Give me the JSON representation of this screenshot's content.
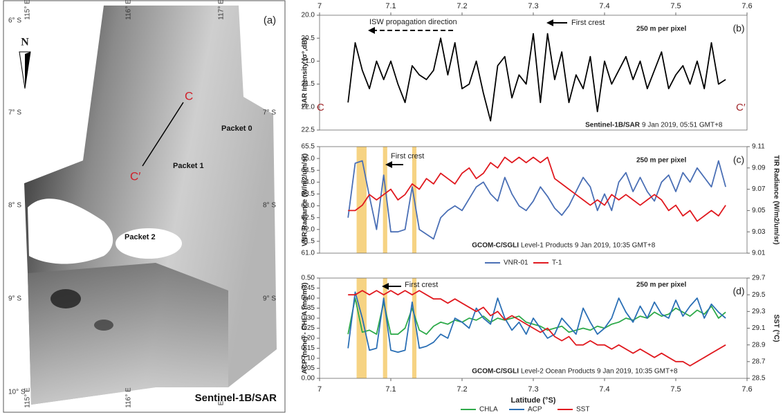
{
  "map": {
    "panel_label": "(a)",
    "north": "N",
    "lat_left": [
      "6° S",
      "7° S",
      "8° S",
      "9° S",
      "10° S"
    ],
    "lat_right": [
      "7° S",
      "8° S",
      "9° S"
    ],
    "lon_top": [
      "115° E",
      "116° E",
      "117° E"
    ],
    "lon_bottom": [
      "115° E",
      "116° E",
      "E"
    ],
    "points": [
      "C",
      "C′"
    ],
    "packets": [
      "Packet 0",
      "Packet 1",
      "Packet 2"
    ],
    "caption": "Sentinel-1B/SAR"
  },
  "chart_data": [
    {
      "type": "line",
      "panel_label": "(b)",
      "y_label": "SAR Intensity (σ°,dB)",
      "x_axis": "top",
      "x": [
        7.04,
        7.05,
        7.06,
        7.07,
        7.08,
        7.09,
        7.1,
        7.11,
        7.12,
        7.13,
        7.14,
        7.15,
        7.16,
        7.17,
        7.18,
        7.19,
        7.2,
        7.21,
        7.22,
        7.23,
        7.24,
        7.25,
        7.26,
        7.27,
        7.28,
        7.29,
        7.3,
        7.31,
        7.32,
        7.33,
        7.34,
        7.35,
        7.36,
        7.37,
        7.38,
        7.39,
        7.4,
        7.41,
        7.42,
        7.43,
        7.44,
        7.45,
        7.46,
        7.47,
        7.48,
        7.49,
        7.5,
        7.51,
        7.52,
        7.53,
        7.54,
        7.55,
        7.56,
        7.57
      ],
      "xlim": [
        7,
        7.6
      ],
      "xticks": [
        7,
        7.1,
        7.2,
        7.3,
        7.4,
        7.5,
        7.6
      ],
      "ylim": [
        22.5,
        20.0
      ],
      "yticks": [
        {
          "value": 20,
          "label": "20.0"
        },
        20.5,
        {
          "value": 21,
          "label": "21.0"
        },
        21.5,
        {
          "value": 22,
          "label": "22.0"
        },
        22.5
      ],
      "series": [
        {
          "color": "#000000",
          "values": [
            21.9,
            20.6,
            21.2,
            21.6,
            21.0,
            21.4,
            21.0,
            21.5,
            21.9,
            21.1,
            21.3,
            21.4,
            21.2,
            20.5,
            21.3,
            20.6,
            21.6,
            21.5,
            21.0,
            21.7,
            22.3,
            21.1,
            20.9,
            21.8,
            21.3,
            21.5,
            20.4,
            21.9,
            20.4,
            21.4,
            20.8,
            21.9,
            21.3,
            21.6,
            20.9,
            22.1,
            21.0,
            21.5,
            21.2,
            20.9,
            21.4,
            21.0,
            21.6,
            21.2,
            20.8,
            21.6,
            21.3,
            21.1,
            21.5,
            21.0,
            21.6,
            20.6,
            21.5,
            21.4
          ]
        }
      ],
      "annotations": [
        "ISW propagation direction",
        "First crest",
        "250 m per pixel",
        "C",
        "C′",
        "Sentinel-1B/SAR",
        "9 Jan 2019, 05:51 GMT+8"
      ]
    },
    {
      "type": "line",
      "panel_label": "(c)",
      "y_label": "VNR Radiance (W/m2/um/sr)",
      "y2_label": "TIR Radiance (W/m2/um/sr)",
      "x_axis": "none",
      "x": [
        7.04,
        7.05,
        7.06,
        7.07,
        7.08,
        7.09,
        7.1,
        7.11,
        7.12,
        7.13,
        7.14,
        7.15,
        7.16,
        7.17,
        7.18,
        7.19,
        7.2,
        7.21,
        7.22,
        7.23,
        7.24,
        7.25,
        7.26,
        7.27,
        7.28,
        7.29,
        7.3,
        7.31,
        7.32,
        7.33,
        7.34,
        7.35,
        7.36,
        7.37,
        7.38,
        7.39,
        7.4,
        7.41,
        7.42,
        7.43,
        7.44,
        7.45,
        7.46,
        7.47,
        7.48,
        7.49,
        7.5,
        7.51,
        7.52,
        7.53,
        7.54,
        7.55,
        7.56,
        7.57
      ],
      "xlim": [
        7,
        7.6
      ],
      "ylim": [
        61,
        65.5
      ],
      "yticks": [
        {
          "value": 61,
          "label": "61.0"
        },
        61.5,
        {
          "value": 62,
          "label": "62.0"
        },
        62.5,
        {
          "value": 63,
          "label": "63.0"
        },
        63.5,
        {
          "value": 64,
          "label": "64.0"
        },
        64.5,
        {
          "value": 65,
          "label": "65.0"
        },
        65.5
      ],
      "y2lim": [
        9.01,
        9.11
      ],
      "y2ticks": [
        9.01,
        9.03,
        9.05,
        9.07,
        9.09,
        9.11
      ],
      "highlight_bands": [
        [
          7.052,
          7.066
        ],
        [
          7.089,
          7.095
        ],
        [
          7.13,
          7.136
        ]
      ],
      "series": [
        {
          "name": "VNR-01",
          "color": "#4a6fb5",
          "values": [
            62.5,
            64.8,
            64.9,
            63.4,
            62.0,
            64.3,
            61.9,
            61.9,
            62.0,
            63.8,
            62.0,
            61.8,
            61.6,
            62.5,
            62.8,
            63.0,
            62.8,
            63.3,
            63.8,
            64.0,
            63.5,
            63.2,
            64.2,
            63.5,
            63.0,
            62.8,
            63.2,
            63.8,
            63.4,
            62.9,
            62.6,
            63.0,
            63.6,
            64.2,
            63.8,
            62.8,
            63.5,
            62.8,
            64.0,
            64.4,
            63.6,
            64.2,
            63.6,
            63.2,
            64.0,
            64.3,
            63.6,
            64.4,
            64.0,
            64.6,
            64.2,
            63.8,
            64.9,
            63.8
          ]
        },
        {
          "name": "T-1",
          "color": "#e0191f",
          "axis": "y2",
          "values": [
            9.05,
            9.05,
            9.055,
            9.065,
            9.06,
            9.065,
            9.07,
            9.06,
            9.065,
            9.075,
            9.07,
            9.08,
            9.075,
            9.085,
            9.08,
            9.075,
            9.085,
            9.09,
            9.08,
            9.085,
            9.095,
            9.09,
            9.1,
            9.095,
            9.1,
            9.095,
            9.1,
            9.095,
            9.1,
            9.08,
            9.075,
            9.07,
            9.065,
            9.06,
            9.055,
            9.06,
            9.055,
            9.065,
            9.06,
            9.065,
            9.06,
            9.055,
            9.06,
            9.065,
            9.06,
            9.05,
            9.055,
            9.045,
            9.05,
            9.04,
            9.045,
            9.05,
            9.045,
            9.055
          ]
        }
      ],
      "annotations": [
        "First crest",
        "250 m per pixel",
        "GCOM-C/SGLI",
        "Level-1 Products 9 Jan 2019, 10:35 GMT+8"
      ]
    },
    {
      "type": "line",
      "panel_label": "(d)",
      "y_label": "ACP (none) - CHLA (mg/m3)",
      "y2_label": "SST (°C)",
      "x_label": "Latitude (°S)",
      "x_axis": "bottom",
      "x": [
        7.04,
        7.05,
        7.06,
        7.07,
        7.08,
        7.09,
        7.1,
        7.11,
        7.12,
        7.13,
        7.14,
        7.15,
        7.16,
        7.17,
        7.18,
        7.19,
        7.2,
        7.21,
        7.22,
        7.23,
        7.24,
        7.25,
        7.26,
        7.27,
        7.28,
        7.29,
        7.3,
        7.31,
        7.32,
        7.33,
        7.34,
        7.35,
        7.36,
        7.37,
        7.38,
        7.39,
        7.4,
        7.41,
        7.42,
        7.43,
        7.44,
        7.45,
        7.46,
        7.47,
        7.48,
        7.49,
        7.5,
        7.51,
        7.52,
        7.53,
        7.54,
        7.55,
        7.56,
        7.57
      ],
      "xlim": [
        7,
        7.6
      ],
      "xticks": [
        7,
        7.1,
        7.2,
        7.3,
        7.4,
        7.5,
        7.6
      ],
      "ylim": [
        0,
        0.5
      ],
      "yticks": [
        {
          "value": 0,
          "label": "0.00"
        },
        0.05,
        {
          "value": 0.1,
          "label": "0.10"
        },
        0.15,
        {
          "value": 0.2,
          "label": "0.20"
        },
        0.25,
        {
          "value": 0.3,
          "label": "0.30"
        },
        0.35,
        {
          "value": 0.4,
          "label": "0.40"
        },
        0.45,
        {
          "value": 0.5,
          "label": "0.50"
        }
      ],
      "y2lim": [
        28.5,
        29.7
      ],
      "y2ticks": [
        28.5,
        28.7,
        28.9,
        29.1,
        29.3,
        29.5,
        29.7
      ],
      "highlight_bands": [
        [
          7.052,
          7.066
        ],
        [
          7.089,
          7.095
        ],
        [
          7.13,
          7.136
        ]
      ],
      "series": [
        {
          "name": "CHLA",
          "color": "#2eaa4a",
          "values": [
            0.22,
            0.4,
            0.23,
            0.24,
            0.22,
            0.38,
            0.22,
            0.22,
            0.25,
            0.35,
            0.24,
            0.22,
            0.26,
            0.28,
            0.27,
            0.29,
            0.28,
            0.3,
            0.29,
            0.31,
            0.28,
            0.3,
            0.29,
            0.3,
            0.31,
            0.28,
            0.27,
            0.26,
            0.24,
            0.25,
            0.26,
            0.23,
            0.24,
            0.25,
            0.24,
            0.26,
            0.25,
            0.27,
            0.28,
            0.3,
            0.29,
            0.31,
            0.3,
            0.33,
            0.31,
            0.32,
            0.35,
            0.33,
            0.31,
            0.34,
            0.32,
            0.36,
            0.3,
            0.33
          ]
        },
        {
          "name": "ACP",
          "color": "#2a6fb5",
          "values": [
            0.15,
            0.43,
            0.3,
            0.14,
            0.15,
            0.4,
            0.14,
            0.13,
            0.14,
            0.38,
            0.15,
            0.16,
            0.18,
            0.22,
            0.2,
            0.3,
            0.28,
            0.25,
            0.35,
            0.3,
            0.27,
            0.4,
            0.3,
            0.24,
            0.28,
            0.22,
            0.3,
            0.25,
            0.2,
            0.22,
            0.3,
            0.26,
            0.22,
            0.35,
            0.28,
            0.22,
            0.25,
            0.3,
            0.4,
            0.33,
            0.28,
            0.36,
            0.3,
            0.38,
            0.32,
            0.3,
            0.39,
            0.31,
            0.36,
            0.4,
            0.3,
            0.37,
            0.33,
            0.3
          ]
        },
        {
          "name": "SST",
          "color": "#e0191f",
          "axis": "y2",
          "values": [
            29.5,
            29.5,
            29.55,
            29.5,
            29.55,
            29.5,
            29.55,
            29.5,
            29.55,
            29.5,
            29.55,
            29.5,
            29.45,
            29.45,
            29.4,
            29.45,
            29.4,
            29.35,
            29.3,
            29.35,
            29.25,
            29.3,
            29.2,
            29.25,
            29.2,
            29.15,
            29.1,
            29.05,
            29.1,
            29.0,
            28.95,
            29.0,
            28.9,
            28.9,
            28.95,
            28.9,
            28.9,
            28.85,
            28.9,
            28.85,
            28.8,
            28.85,
            28.8,
            28.75,
            28.8,
            28.75,
            28.7,
            28.7,
            28.65,
            28.7,
            28.75,
            28.8,
            28.85,
            28.9
          ]
        }
      ],
      "annotations": [
        "First crest",
        "250 m per pixel",
        "GCOM-C/SGLI",
        "Level-2 Ocean Products 9 Jan 2019, 10:35 GMT+8"
      ]
    }
  ]
}
